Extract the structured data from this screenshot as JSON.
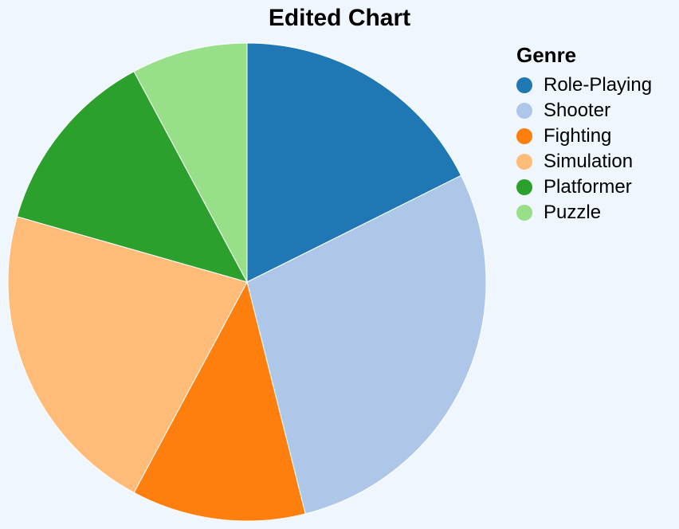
{
  "chart_data": {
    "type": "pie",
    "title": "Edited Chart",
    "legend_title": "Genre",
    "legend_position": "right",
    "categories": [
      "Role-Playing",
      "Shooter",
      "Fighting",
      "Simulation",
      "Platformer",
      "Puzzle"
    ],
    "values": [
      18,
      29,
      12,
      22,
      13,
      8
    ],
    "colors": [
      "#1f77b4",
      "#aec7e8",
      "#ff7f0e",
      "#ffbb78",
      "#2ca02c",
      "#98df8a"
    ]
  }
}
